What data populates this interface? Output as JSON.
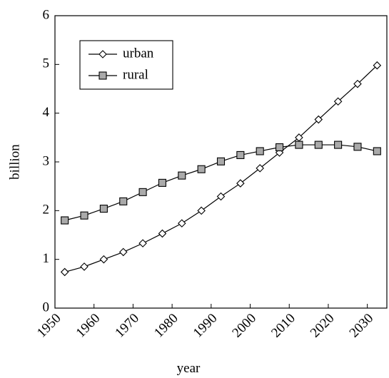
{
  "chart_data": {
    "type": "line",
    "x_label": "year",
    "y_label": "billion",
    "x": [
      1952.5,
      1957.5,
      1962.5,
      1967.5,
      1972.5,
      1977.5,
      1982.5,
      1987.5,
      1992.5,
      1997.5,
      2002.5,
      2007.5,
      2012.5,
      2017.5,
      2022.5,
      2027.5,
      2032.5
    ],
    "series": [
      {
        "name": "urban",
        "color": "#000000",
        "marker": "diamond",
        "marker_fill": "#ffffff",
        "values": [
          0.74,
          0.85,
          1.0,
          1.15,
          1.33,
          1.53,
          1.74,
          2.0,
          2.29,
          2.56,
          2.87,
          3.19,
          3.5,
          3.87,
          4.24,
          4.6,
          4.98
        ]
      },
      {
        "name": "rural",
        "color": "#000000",
        "marker": "square",
        "marker_fill": "#aaaaaa",
        "values": [
          1.8,
          1.9,
          2.04,
          2.19,
          2.38,
          2.57,
          2.72,
          2.85,
          3.01,
          3.14,
          3.22,
          3.3,
          3.35,
          3.35,
          3.35,
          3.31,
          3.22
        ]
      }
    ],
    "xlim": [
      1950,
      2035
    ],
    "xticks": [
      1950,
      1960,
      1970,
      1980,
      1990,
      2000,
      2010,
      2020,
      2030
    ],
    "ylim": [
      0,
      6
    ],
    "yticks": [
      0,
      1,
      2,
      3,
      4,
      5,
      6
    ],
    "legend": "upper left",
    "grid": false
  }
}
